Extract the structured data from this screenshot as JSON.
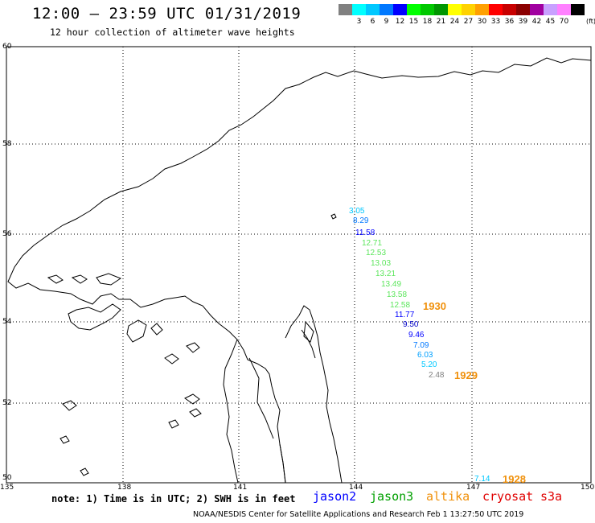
{
  "title": "12:00 – 23:59 UTC 01/31/2019",
  "subtitle": "12 hour collection of altimeter wave heights",
  "legend": {
    "unit": "(ft)",
    "items": [
      {
        "label": "",
        "color": "#808080"
      },
      {
        "label": "3",
        "color": "#00ffff"
      },
      {
        "label": "6",
        "color": "#00c8ff"
      },
      {
        "label": "9",
        "color": "#0078ff"
      },
      {
        "label": "12",
        "color": "#0000ff"
      },
      {
        "label": "15",
        "color": "#00ff00"
      },
      {
        "label": "18",
        "color": "#00c800"
      },
      {
        "label": "21",
        "color": "#009600"
      },
      {
        "label": "24",
        "color": "#ffff00"
      },
      {
        "label": "27",
        "color": "#ffd200"
      },
      {
        "label": "30",
        "color": "#ffa000"
      },
      {
        "label": "33",
        "color": "#ff0000"
      },
      {
        "label": "36",
        "color": "#c80000"
      },
      {
        "label": "39",
        "color": "#8b0000"
      },
      {
        "label": "42",
        "color": "#a000a0"
      },
      {
        "label": "45",
        "color": "#c8a0ff"
      },
      {
        "label": "70",
        "color": "#ff80ff"
      },
      {
        "label": "",
        "color": "#000000"
      }
    ]
  },
  "map": {
    "lat_labels": [
      "60",
      "58",
      "56",
      "54",
      "52",
      "50"
    ],
    "lon_labels": [
      "135",
      "138",
      "141",
      "144",
      "147",
      "150"
    ]
  },
  "wave_heights": [
    {
      "value": "3.05",
      "color": "#00c8ff"
    },
    {
      "value": "8.29",
      "color": "#0078ff"
    },
    {
      "value": "11.58",
      "color": "#0000ff"
    },
    {
      "value": "12.71",
      "color": "#5ce65c"
    },
    {
      "value": "12.53",
      "color": "#5ce65c"
    },
    {
      "value": "13.03",
      "color": "#5ce65c"
    },
    {
      "value": "13.21",
      "color": "#5ce65c"
    },
    {
      "value": "13.49",
      "color": "#5ce65c"
    },
    {
      "value": "13.58",
      "color": "#5ce65c"
    },
    {
      "value": "12.58",
      "color": "#5ce65c"
    },
    {
      "value": "11.77",
      "color": "#0000ff"
    },
    {
      "value": "9.50",
      "color": "#0000c8"
    },
    {
      "value": "9.46",
      "color": "#0000ff"
    },
    {
      "value": "7.09",
      "color": "#0078ff"
    },
    {
      "value": "6.03",
      "color": "#00a0ff"
    },
    {
      "value": "5.20",
      "color": "#00c8ff"
    },
    {
      "value": "2.48",
      "color": "#808080"
    },
    {
      "value": "7.14",
      "color": "#00c8ff"
    }
  ],
  "pass_times": [
    "1930",
    "1929",
    "1928"
  ],
  "note": "note: 1) Time is in UTC; 2) SWH is in feet",
  "satellites": [
    {
      "name": "jason2",
      "color": "#0000ff"
    },
    {
      "name": "jason3",
      "color": "#00a000"
    },
    {
      "name": "altika",
      "color": "#f0900a"
    },
    {
      "name": "cryosat",
      "color": "#e00000"
    },
    {
      "name": "s3a",
      "color": "#e00000"
    }
  ],
  "credit": "NOAA/NESDIS Center for Satellite Applications and Research     Feb  1 13:27:50 UTC 2019"
}
